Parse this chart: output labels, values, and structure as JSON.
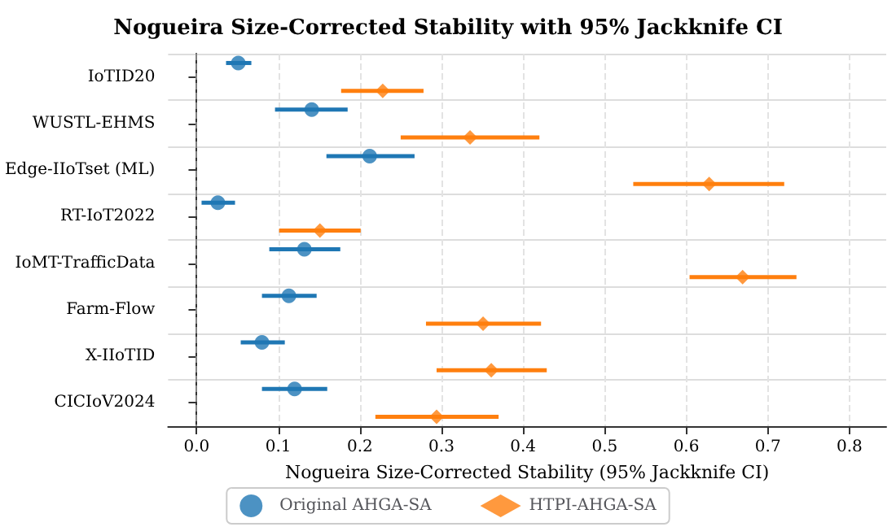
{
  "chart_data": {
    "type": "scatter",
    "title": "Nogueira Size-Corrected Stability with 95% Jackknife CI",
    "xlabel": "Nogueira Size-Corrected Stability (95% Jackknife CI)",
    "orientation": "horizontal",
    "categories": [
      "IoTID20",
      "WUSTL-EHMS",
      "Edge-IIoTset (ML)",
      "RT-IoT2022",
      "IoMT-TrafficData",
      "Farm-Flow",
      "X-IIoTID",
      "CICIoV2024"
    ],
    "series": [
      {
        "name": "Original AHGA-SA",
        "color": "#1f77b4",
        "marker": "circle",
        "values": [
          0.051,
          0.141,
          0.212,
          0.026,
          0.132,
          0.113,
          0.08,
          0.12
        ],
        "errors": [
          [
            0.036,
            0.067
          ],
          [
            0.096,
            0.185
          ],
          [
            0.159,
            0.267
          ],
          [
            0.006,
            0.047
          ],
          [
            0.089,
            0.176
          ],
          [
            0.08,
            0.147
          ],
          [
            0.054,
            0.108
          ],
          [
            0.08,
            0.16
          ]
        ]
      },
      {
        "name": "HTPI-AHGA-SA",
        "color": "#ff7f0e",
        "marker": "diamond",
        "values": [
          0.228,
          0.335,
          0.628,
          0.151,
          0.669,
          0.351,
          0.361,
          0.294
        ],
        "errors": [
          [
            0.177,
            0.278
          ],
          [
            0.25,
            0.42
          ],
          [
            0.535,
            0.72
          ],
          [
            0.101,
            0.201
          ],
          [
            0.604,
            0.735
          ],
          [
            0.281,
            0.422
          ],
          [
            0.294,
            0.429
          ],
          [
            0.219,
            0.37
          ]
        ]
      }
    ],
    "xlim": [
      -0.035,
      0.845
    ],
    "xticks": [
      {
        "value": 0,
        "label": "0.0"
      },
      0.1,
      0.2,
      0.3,
      0.4,
      0.5,
      0.6,
      0.7,
      0.8
    ],
    "ref_lines": [
      {
        "axis": "x",
        "value": 0,
        "color": "#808080",
        "line_style": "dashed"
      }
    ],
    "grid": true,
    "legend": "bottom"
  }
}
